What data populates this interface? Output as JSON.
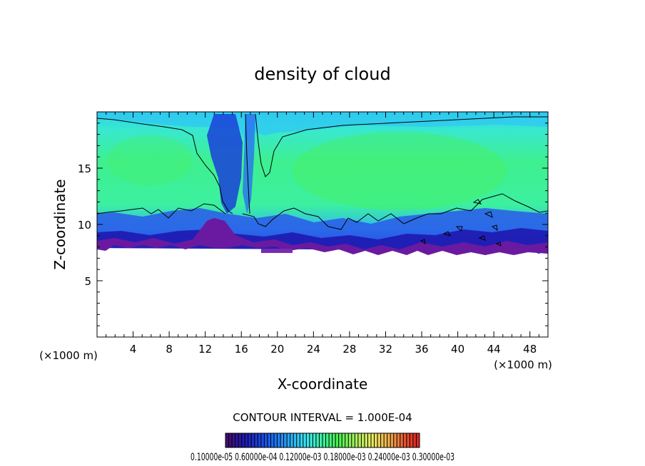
{
  "chart_data": {
    "type": "heatmap",
    "title": "density of cloud",
    "xlabel": "X-coordinate",
    "ylabel": "Z-coordinate",
    "x_unit": "(×1000 m)",
    "y_unit": "(×1000 m)",
    "xlim": [
      0,
      50
    ],
    "ylim": [
      0,
      20
    ],
    "x_ticks": [
      4,
      8,
      12,
      16,
      20,
      24,
      28,
      32,
      36,
      40,
      44,
      48
    ],
    "y_ticks": [
      5,
      10,
      15
    ],
    "contour_interval_text": "CONTOUR INTERVAL = 1.000E-04",
    "colorbar_labels_text": "0.10000e-05 0.60000e-04 0.12000e-03 0.18000e-03 0.24000e-03 0.30000e-03",
    "colormap": [
      "#4a0a6e",
      "#1e1ab4",
      "#1a5af0",
      "#2aa8f8",
      "#38e8f0",
      "#3cf0a0",
      "#48f050",
      "#a8f060",
      "#e8e860",
      "#f0a848",
      "#e85030",
      "#d82020"
    ],
    "cloud_base_km": 7.5,
    "cloud_top_km": 19.5,
    "dominant_value_color": "#3cf0a0"
  }
}
